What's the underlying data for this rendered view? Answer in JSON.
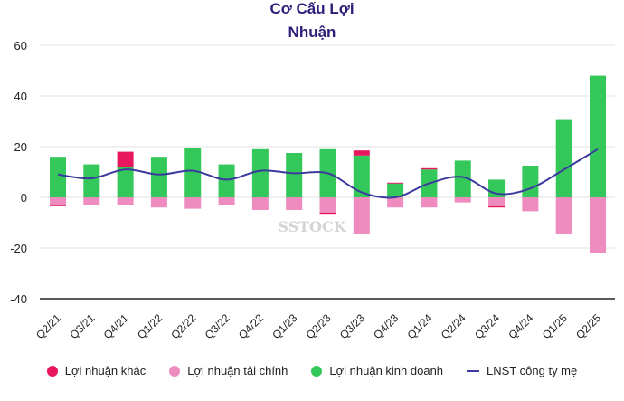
{
  "chart_data": {
    "type": "bar",
    "title": "Cơ Cấu Lợi Nhuận",
    "categories": [
      "Q2/21",
      "Q3/21",
      "Q4/21",
      "Q1/22",
      "Q2/22",
      "Q3/22",
      "Q4/22",
      "Q1/23",
      "Q2/23",
      "Q3/23",
      "Q4/23",
      "Q1/24",
      "Q2/24",
      "Q3/24",
      "Q4/24",
      "Q1/25",
      "Q2/25"
    ],
    "ylim": [
      -40,
      60
    ],
    "yticks": [
      60,
      40,
      20,
      0,
      -20,
      -40
    ],
    "grid": true,
    "stacked": true,
    "legend_position": "bottom",
    "series": [
      {
        "name": "Lợi nhuận khác",
        "type": "bar",
        "color": "#e8175d",
        "values": [
          -0.5,
          0,
          6,
          0,
          0,
          0,
          0,
          0,
          -0.5,
          2,
          0.3,
          0.5,
          0,
          -0.5,
          0,
          0,
          0
        ]
      },
      {
        "name": "Lợi nhuận tài chính",
        "type": "bar",
        "color": "#ee8cc0",
        "values": [
          -3,
          -3,
          -3,
          -4,
          -4.5,
          -3,
          -5,
          -5,
          -6,
          -14.5,
          -4,
          -4,
          -2,
          -3.5,
          -5.5,
          -14.5,
          -22
        ]
      },
      {
        "name": "Lợi nhuận kinh doanh",
        "type": "bar",
        "color": "#34c759",
        "values": [
          16,
          13,
          12,
          16,
          19.5,
          13,
          19,
          17.5,
          19,
          16.5,
          5.5,
          11,
          14.5,
          7,
          12.5,
          30.5,
          48
        ]
      },
      {
        "name": "LNST công ty mẹ",
        "type": "line",
        "color": "#3b3a9e",
        "values": [
          9,
          7.5,
          11,
          9,
          10.5,
          7,
          10.5,
          9.5,
          9.5,
          2,
          0,
          5.5,
          8,
          1.5,
          3.5,
          11,
          19
        ]
      }
    ]
  },
  "watermark": "SSTOCK"
}
